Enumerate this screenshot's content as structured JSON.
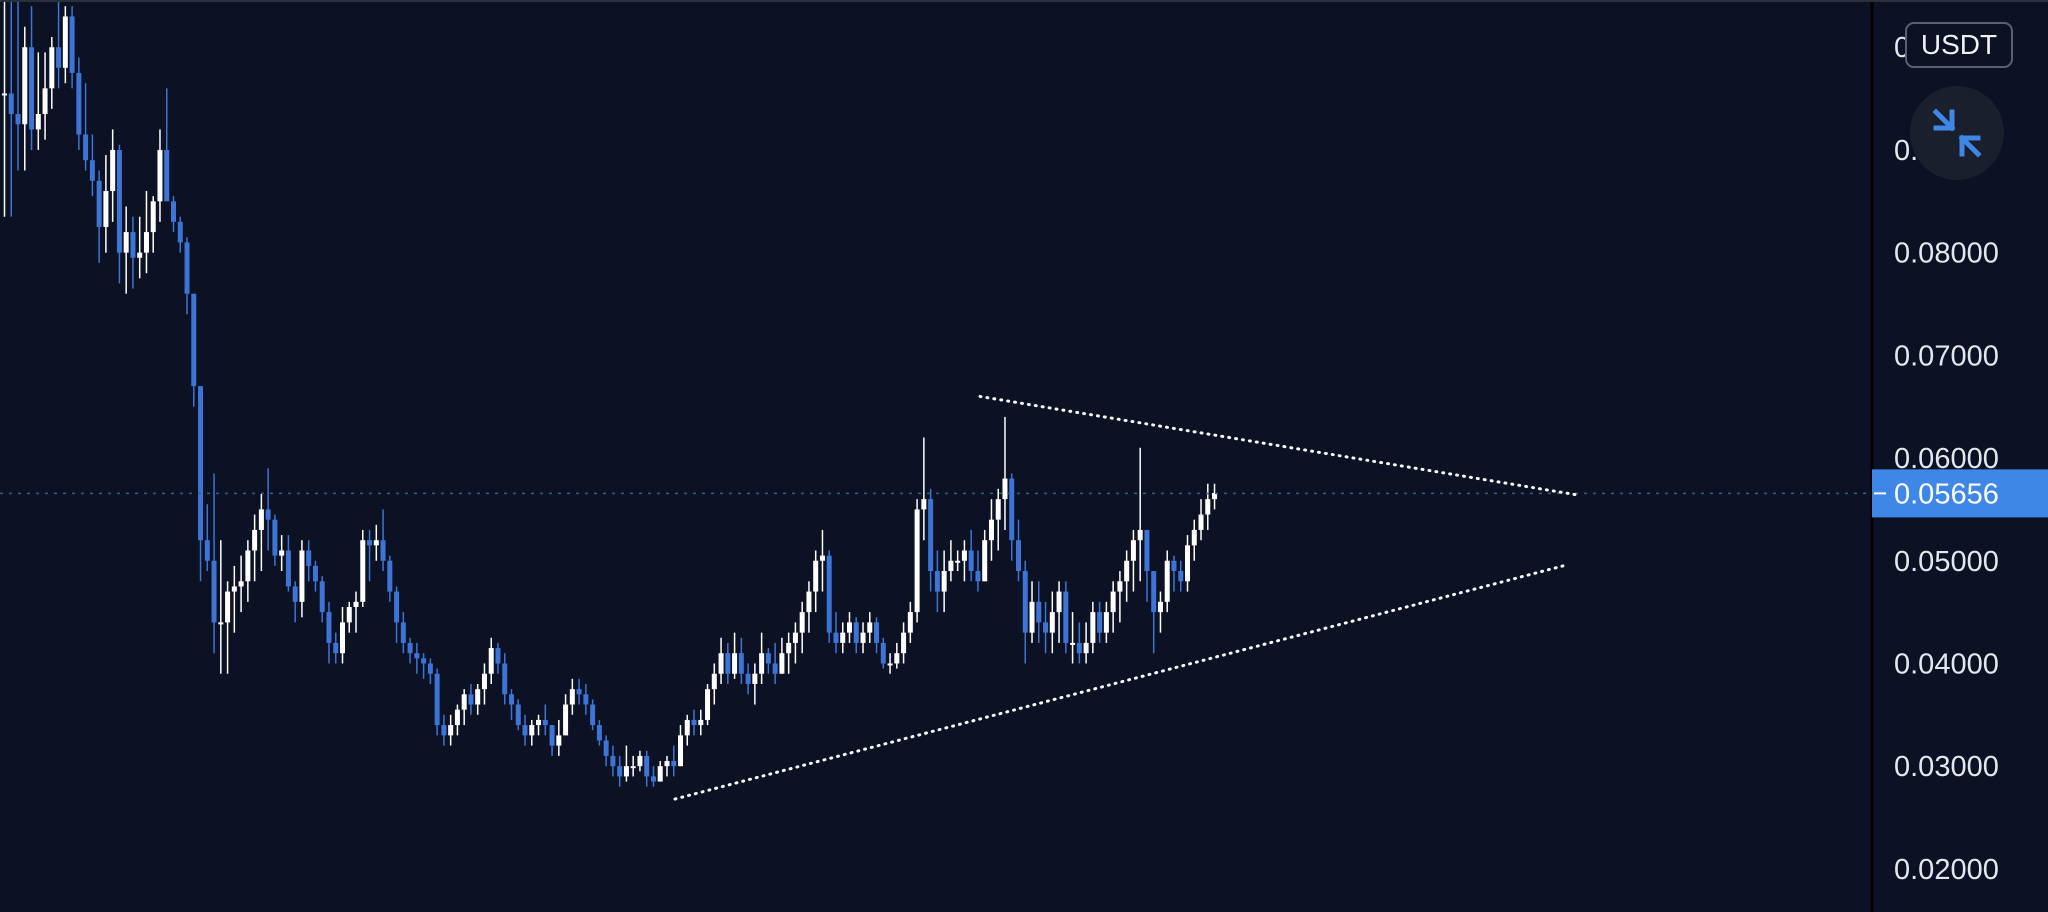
{
  "header": {
    "currency_label": "USDT",
    "collapse_icon": "collapse-arrows-icon"
  },
  "colors": {
    "background": "#0c1224",
    "bull": "#ffffff",
    "bear": "#3d74d6",
    "accent": "#3f87e6",
    "trendline": "#ffffff",
    "price_line": "#2f5f8a",
    "axis_text": "#e4e7ee"
  },
  "chart_data": {
    "type": "candlestick",
    "title": "",
    "xlabel": "",
    "ylabel": "",
    "ylim": [
      0.0158,
      0.1046
    ],
    "y_ticks": [
      "0.02000",
      "0.03000",
      "0.04000",
      "0.05000",
      "0.06000",
      "0.07000",
      "0.08000",
      "0.09000",
      "0.10000"
    ],
    "last_price": "0.05656",
    "grid": false,
    "candles_hlc": [
      [
        0.1046,
        0.0835,
        0.0955
      ],
      [
        0.1046,
        0.0835,
        0.0935
      ],
      [
        0.1046,
        0.088,
        0.0925
      ],
      [
        0.102,
        0.088,
        0.1
      ],
      [
        0.104,
        0.09,
        0.092
      ],
      [
        0.0995,
        0.09,
        0.0935
      ],
      [
        0.0995,
        0.091,
        0.096
      ],
      [
        0.101,
        0.094,
        0.1
      ],
      [
        0.1046,
        0.096,
        0.098
      ],
      [
        0.104,
        0.0965,
        0.103
      ],
      [
        0.104,
        0.096,
        0.0975
      ],
      [
        0.099,
        0.09,
        0.0915
      ],
      [
        0.0965,
        0.088,
        0.089
      ],
      [
        0.0915,
        0.0855,
        0.087
      ],
      [
        0.088,
        0.079,
        0.0825
      ],
      [
        0.0895,
        0.08,
        0.086
      ],
      [
        0.092,
        0.083,
        0.09
      ],
      [
        0.0905,
        0.077,
        0.08
      ],
      [
        0.0845,
        0.076,
        0.082
      ],
      [
        0.0835,
        0.0765,
        0.0795
      ],
      [
        0.0835,
        0.0775,
        0.08
      ],
      [
        0.086,
        0.078,
        0.082
      ],
      [
        0.0855,
        0.08,
        0.085
      ],
      [
        0.092,
        0.083,
        0.09
      ],
      [
        0.096,
        0.085,
        0.085
      ],
      [
        0.0855,
        0.082,
        0.083
      ],
      [
        0.0835,
        0.08,
        0.081
      ],
      [
        0.0815,
        0.074,
        0.076
      ],
      [
        0.076,
        0.065,
        0.067
      ],
      [
        0.067,
        0.048,
        0.052
      ],
      [
        0.0555,
        0.049,
        0.05
      ],
      [
        0.0585,
        0.041,
        0.044
      ],
      [
        0.052,
        0.039,
        0.044
      ],
      [
        0.048,
        0.039,
        0.047
      ],
      [
        0.0495,
        0.043,
        0.0475
      ],
      [
        0.0505,
        0.045,
        0.048
      ],
      [
        0.052,
        0.046,
        0.051
      ],
      [
        0.0545,
        0.048,
        0.053
      ],
      [
        0.0565,
        0.049,
        0.055
      ],
      [
        0.059,
        0.051,
        0.054
      ],
      [
        0.0545,
        0.0495,
        0.0505
      ],
      [
        0.0525,
        0.049,
        0.051
      ],
      [
        0.0525,
        0.047,
        0.0475
      ],
      [
        0.048,
        0.044,
        0.046
      ],
      [
        0.052,
        0.0445,
        0.051
      ],
      [
        0.052,
        0.048,
        0.0495
      ],
      [
        0.05,
        0.047,
        0.048
      ],
      [
        0.0485,
        0.044,
        0.045
      ],
      [
        0.046,
        0.04,
        0.042
      ],
      [
        0.043,
        0.04,
        0.041
      ],
      [
        0.0455,
        0.04,
        0.044
      ],
      [
        0.046,
        0.043,
        0.0455
      ],
      [
        0.047,
        0.043,
        0.046
      ],
      [
        0.053,
        0.0455,
        0.052
      ],
      [
        0.053,
        0.048,
        0.0515
      ],
      [
        0.0535,
        0.05,
        0.052
      ],
      [
        0.055,
        0.049,
        0.05
      ],
      [
        0.0505,
        0.046,
        0.047
      ],
      [
        0.0475,
        0.042,
        0.044
      ],
      [
        0.045,
        0.041,
        0.042
      ],
      [
        0.0425,
        0.04,
        0.041
      ],
      [
        0.042,
        0.039,
        0.0405
      ],
      [
        0.041,
        0.0385,
        0.04
      ],
      [
        0.0405,
        0.038,
        0.039
      ],
      [
        0.0395,
        0.033,
        0.034
      ],
      [
        0.035,
        0.032,
        0.033
      ],
      [
        0.035,
        0.032,
        0.034
      ],
      [
        0.036,
        0.033,
        0.0355
      ],
      [
        0.0375,
        0.034,
        0.037
      ],
      [
        0.038,
        0.035,
        0.036
      ],
      [
        0.038,
        0.035,
        0.0375
      ],
      [
        0.04,
        0.036,
        0.039
      ],
      [
        0.0425,
        0.038,
        0.0415
      ],
      [
        0.042,
        0.039,
        0.04
      ],
      [
        0.041,
        0.036,
        0.037
      ],
      [
        0.0375,
        0.0345,
        0.036
      ],
      [
        0.0365,
        0.0335,
        0.034
      ],
      [
        0.035,
        0.032,
        0.033
      ],
      [
        0.0345,
        0.032,
        0.034
      ],
      [
        0.035,
        0.033,
        0.0345
      ],
      [
        0.036,
        0.033,
        0.034
      ],
      [
        0.034,
        0.031,
        0.032
      ],
      [
        0.0345,
        0.031,
        0.033
      ],
      [
        0.037,
        0.033,
        0.036
      ],
      [
        0.0385,
        0.035,
        0.0375
      ],
      [
        0.0385,
        0.036,
        0.037
      ],
      [
        0.038,
        0.035,
        0.036
      ],
      [
        0.0365,
        0.0335,
        0.034
      ],
      [
        0.0345,
        0.032,
        0.0325
      ],
      [
        0.033,
        0.03,
        0.031
      ],
      [
        0.032,
        0.029,
        0.03
      ],
      [
        0.031,
        0.028,
        0.029
      ],
      [
        0.032,
        0.0285,
        0.03
      ],
      [
        0.031,
        0.029,
        0.03
      ],
      [
        0.0315,
        0.0295,
        0.031
      ],
      [
        0.0315,
        0.028,
        0.029
      ],
      [
        0.03,
        0.028,
        0.0285
      ],
      [
        0.0305,
        0.0285,
        0.03
      ],
      [
        0.031,
        0.029,
        0.0305
      ],
      [
        0.032,
        0.029,
        0.03
      ],
      [
        0.034,
        0.03,
        0.033
      ],
      [
        0.035,
        0.032,
        0.0345
      ],
      [
        0.0355,
        0.033,
        0.034
      ],
      [
        0.0355,
        0.033,
        0.0345
      ],
      [
        0.038,
        0.034,
        0.0375
      ],
      [
        0.04,
        0.036,
        0.039
      ],
      [
        0.0425,
        0.038,
        0.041
      ],
      [
        0.042,
        0.038,
        0.039
      ],
      [
        0.043,
        0.0385,
        0.041
      ],
      [
        0.0425,
        0.038,
        0.039
      ],
      [
        0.04,
        0.037,
        0.038
      ],
      [
        0.04,
        0.036,
        0.039
      ],
      [
        0.043,
        0.038,
        0.041
      ],
      [
        0.0415,
        0.039,
        0.04
      ],
      [
        0.042,
        0.038,
        0.039
      ],
      [
        0.0425,
        0.039,
        0.041
      ],
      [
        0.043,
        0.039,
        0.042
      ],
      [
        0.044,
        0.04,
        0.043
      ],
      [
        0.046,
        0.041,
        0.045
      ],
      [
        0.048,
        0.043,
        0.047
      ],
      [
        0.051,
        0.045,
        0.05
      ],
      [
        0.053,
        0.047,
        0.0505
      ],
      [
        0.051,
        0.042,
        0.043
      ],
      [
        0.045,
        0.041,
        0.042
      ],
      [
        0.044,
        0.041,
        0.043
      ],
      [
        0.045,
        0.042,
        0.044
      ],
      [
        0.0445,
        0.041,
        0.042
      ],
      [
        0.044,
        0.041,
        0.043
      ],
      [
        0.045,
        0.042,
        0.044
      ],
      [
        0.0445,
        0.041,
        0.042
      ],
      [
        0.0425,
        0.0395,
        0.04
      ],
      [
        0.041,
        0.039,
        0.04
      ],
      [
        0.042,
        0.0395,
        0.041
      ],
      [
        0.044,
        0.04,
        0.043
      ],
      [
        0.046,
        0.042,
        0.045
      ],
      [
        0.056,
        0.044,
        0.055
      ],
      [
        0.062,
        0.052,
        0.056
      ],
      [
        0.057,
        0.047,
        0.049
      ],
      [
        0.051,
        0.045,
        0.047
      ],
      [
        0.051,
        0.045,
        0.049
      ],
      [
        0.052,
        0.048,
        0.05
      ],
      [
        0.051,
        0.049,
        0.05
      ],
      [
        0.052,
        0.048,
        0.051
      ],
      [
        0.053,
        0.048,
        0.049
      ],
      [
        0.051,
        0.047,
        0.048
      ],
      [
        0.053,
        0.048,
        0.052
      ],
      [
        0.056,
        0.05,
        0.054
      ],
      [
        0.057,
        0.051,
        0.056
      ],
      [
        0.064,
        0.053,
        0.058
      ],
      [
        0.0585,
        0.05,
        0.052
      ],
      [
        0.054,
        0.048,
        0.049
      ],
      [
        0.05,
        0.04,
        0.043
      ],
      [
        0.048,
        0.042,
        0.046
      ],
      [
        0.048,
        0.042,
        0.044
      ],
      [
        0.046,
        0.041,
        0.043
      ],
      [
        0.047,
        0.041,
        0.045
      ],
      [
        0.048,
        0.042,
        0.047
      ],
      [
        0.048,
        0.041,
        0.042
      ],
      [
        0.045,
        0.04,
        0.042
      ],
      [
        0.044,
        0.04,
        0.041
      ],
      [
        0.044,
        0.04,
        0.042
      ],
      [
        0.046,
        0.041,
        0.045
      ],
      [
        0.046,
        0.042,
        0.043
      ],
      [
        0.046,
        0.042,
        0.045
      ],
      [
        0.048,
        0.043,
        0.047
      ],
      [
        0.049,
        0.044,
        0.048
      ],
      [
        0.051,
        0.046,
        0.05
      ],
      [
        0.053,
        0.047,
        0.052
      ],
      [
        0.061,
        0.048,
        0.053
      ],
      [
        0.053,
        0.046,
        0.049
      ],
      [
        0.048,
        0.041,
        0.045
      ],
      [
        0.047,
        0.043,
        0.046
      ],
      [
        0.051,
        0.045,
        0.05
      ],
      [
        0.0505,
        0.047,
        0.049
      ],
      [
        0.05,
        0.047,
        0.048
      ],
      [
        0.0525,
        0.047,
        0.0515
      ],
      [
        0.054,
        0.05,
        0.053
      ],
      [
        0.056,
        0.052,
        0.0545
      ],
      [
        0.0575,
        0.053,
        0.056
      ],
      [
        0.0575,
        0.055,
        0.0566
      ]
    ],
    "trendlines": [
      {
        "style": "dotted",
        "from": [
          0,
          0.066
        ],
        "to": [
          1,
          0.0564
        ]
      },
      {
        "style": "dotted",
        "from": [
          0,
          0.0268
        ],
        "to": [
          1,
          0.0495
        ]
      }
    ]
  }
}
